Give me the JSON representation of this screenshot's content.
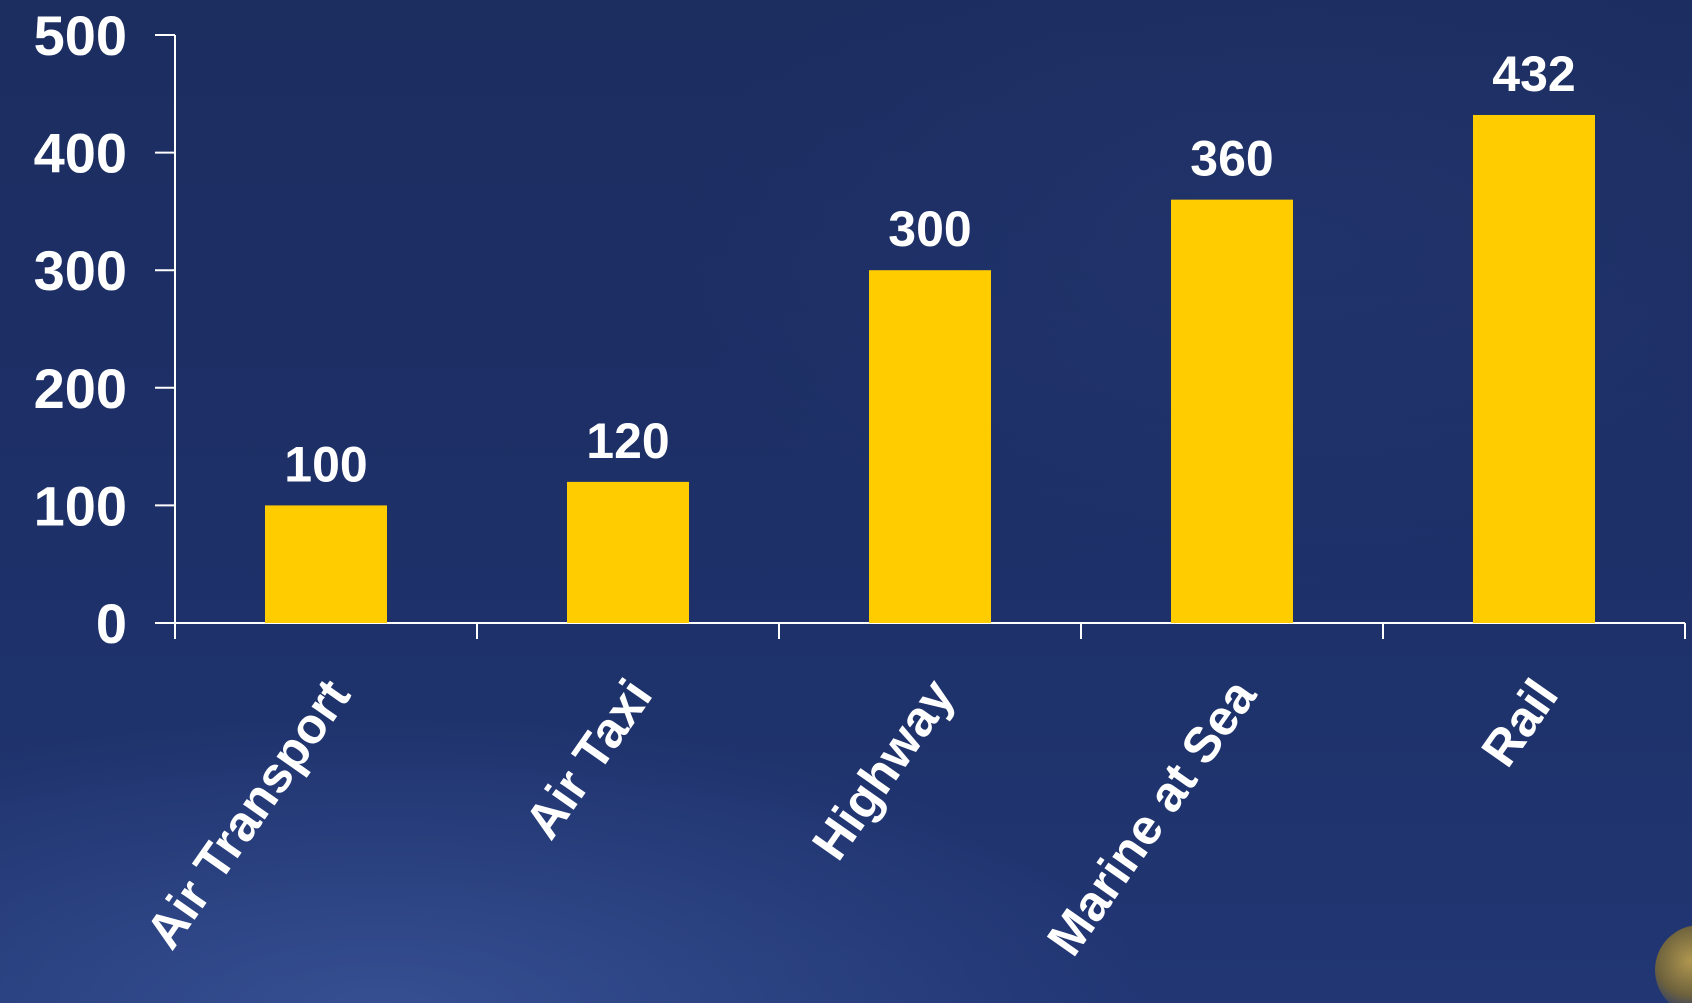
{
  "chart_data": {
    "type": "bar",
    "categories": [
      "Air Transport",
      "Air Taxi",
      "Highway",
      "Marine at Sea",
      "Rail"
    ],
    "values": [
      100,
      120,
      300,
      360,
      432
    ],
    "data_labels": [
      "100",
      "120",
      "300",
      "360",
      "432"
    ],
    "y_ticks": [
      "0",
      "100",
      "200",
      "300",
      "400",
      "500"
    ],
    "ylim": [
      0,
      500
    ],
    "title": "",
    "xlabel": "",
    "ylabel": "",
    "grid": false,
    "colors": {
      "bar": "#ffcc00",
      "text": "#ffffff",
      "axis": "#ffffff",
      "background": "#1d2f64"
    }
  }
}
